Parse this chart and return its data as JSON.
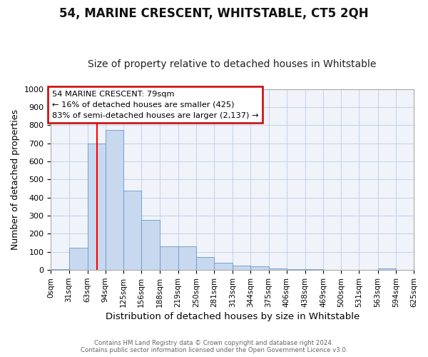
{
  "title": "54, MARINE CRESCENT, WHITSTABLE, CT5 2QH",
  "subtitle": "Size of property relative to detached houses in Whitstable",
  "xlabel": "Distribution of detached houses by size in Whitstable",
  "ylabel": "Number of detached properties",
  "bin_edges": [
    0,
    31,
    63,
    94,
    125,
    156,
    188,
    219,
    250,
    281,
    313,
    344,
    375,
    406,
    438,
    469,
    500,
    531,
    563,
    594,
    625
  ],
  "bin_counts": [
    5,
    125,
    700,
    775,
    440,
    275,
    130,
    130,
    70,
    40,
    25,
    20,
    10,
    5,
    3,
    2,
    2,
    2,
    8,
    2
  ],
  "bar_color": "#c8d8ee",
  "bar_edgecolor": "#6699cc",
  "redline_x": 79,
  "ylim": [
    0,
    1000
  ],
  "annotation_line1": "54 MARINE CRESCENT: 79sqm",
  "annotation_line2": "← 16% of detached houses are smaller (425)",
  "annotation_line3": "83% of semi-detached houses are larger (2,137) →",
  "annotation_box_color": "#ffffff",
  "annotation_box_edgecolor": "#cc0000",
  "footer_line1": "Contains HM Land Registry data © Crown copyright and database right 2024.",
  "footer_line2": "Contains public sector information licensed under the Open Government Licence v3.0.",
  "background_color": "#ffffff",
  "plot_bg_color": "#f0f4fa",
  "grid_color": "#c8d4e8",
  "title_fontsize": 12,
  "subtitle_fontsize": 10,
  "tick_labels": [
    "0sqm",
    "31sqm",
    "63sqm",
    "94sqm",
    "125sqm",
    "156sqm",
    "188sqm",
    "219sqm",
    "250sqm",
    "281sqm",
    "313sqm",
    "344sqm",
    "375sqm",
    "406sqm",
    "438sqm",
    "469sqm",
    "500sqm",
    "531sqm",
    "563sqm",
    "594sqm",
    "625sqm"
  ]
}
